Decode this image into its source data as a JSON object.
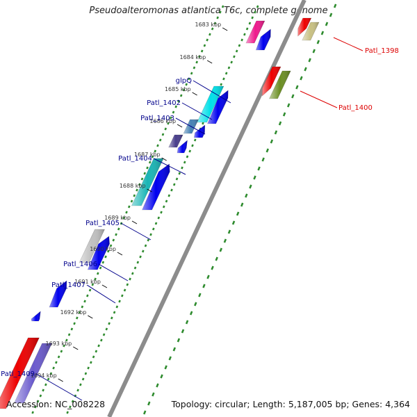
{
  "title": "Pseudoalteromonas atlantica T6c, complete genome",
  "footer": {
    "accession": "Accession: NC_008228",
    "summary": "Topology: circular; Length: 5,187,005 bp; Genes: 4,364"
  },
  "colors": {
    "backbone": "#8c8c8c",
    "forward_tick": "#2e8b2e",
    "reverse_tick": "#2e8b2e",
    "label_blue": "#00008b",
    "label_red": "#dd0000",
    "gene_blue": "#0000ee",
    "gene_red": "#ee0000",
    "gene_cyan": "#00e0e8",
    "gene_teal": "#19b5b5",
    "gene_magenta": "#ee1a8c",
    "gene_olive": "#6b8e23",
    "gene_tan": "#c8c083",
    "gene_grey": "#c0c0c0",
    "gene_steel": "#4682b4",
    "gene_purple": "#6a5acd",
    "gene_darkpurple": "#483d8b"
  },
  "kbp_ticks": [
    "1683 kbp",
    "1684 kbp",
    "1685 kbp",
    "1686 kbp",
    "1687 kbp",
    "1688 kbp",
    "1689 kbp",
    "1690 kbp",
    "1691 kbp",
    "1692 kbp",
    "1693 kbp",
    "1694 kbp"
  ],
  "gene_labels": {
    "patl_1398": "Patl_1398",
    "patl_1400": "Patl_1400",
    "glpq": "glpQ",
    "patl_1402": "Patl_1402",
    "patl_1403": "Patl_1403",
    "patl_1404": "Patl_1404",
    "patl_1405": "Patl_1405",
    "patl_1406": "Patl_1406",
    "patl_1407": "Patl_1407",
    "patl_1409": "Patl_1409"
  }
}
